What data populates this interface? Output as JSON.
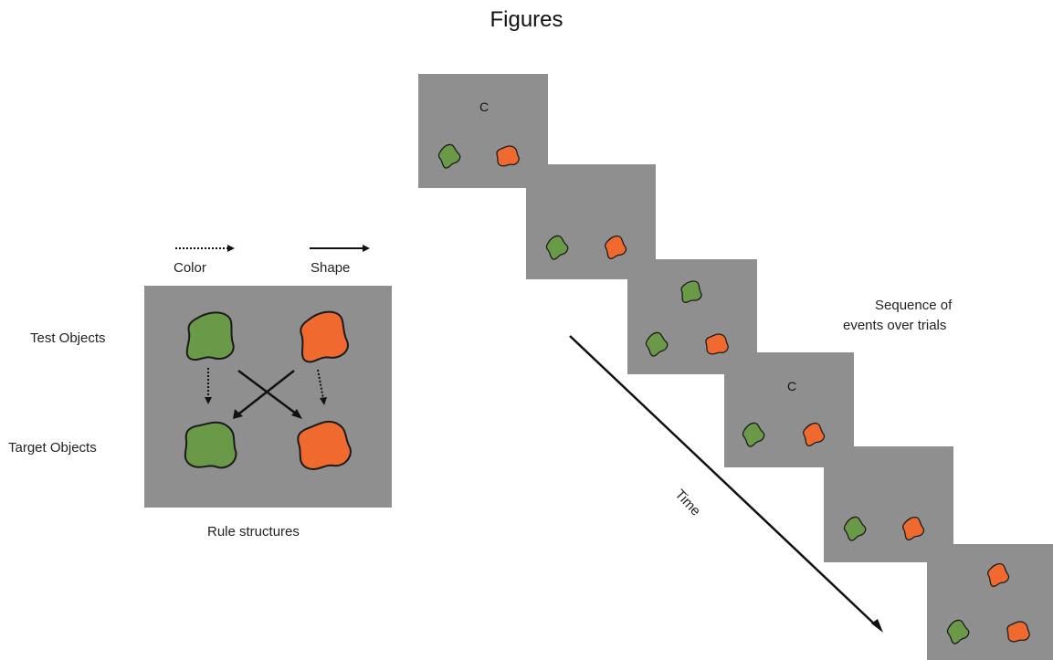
{
  "page": {
    "title": "Figures"
  },
  "rule_panel": {
    "legend_color_label": "Color",
    "legend_shape_label": "Shape",
    "row_test_label": "Test Objects",
    "row_target_label": "Target Objects",
    "caption": "Rule structures"
  },
  "sequence": {
    "caption_line1": "Sequence of",
    "caption_line2": "events over trials",
    "time_label": "Time",
    "cue_letter_1": "C",
    "cue_letter_2": "C"
  },
  "colors": {
    "panel_gray": "#8f8f8f",
    "green": "#6a9a48",
    "orange": "#f06a30",
    "outline": "#1a1a1a"
  }
}
